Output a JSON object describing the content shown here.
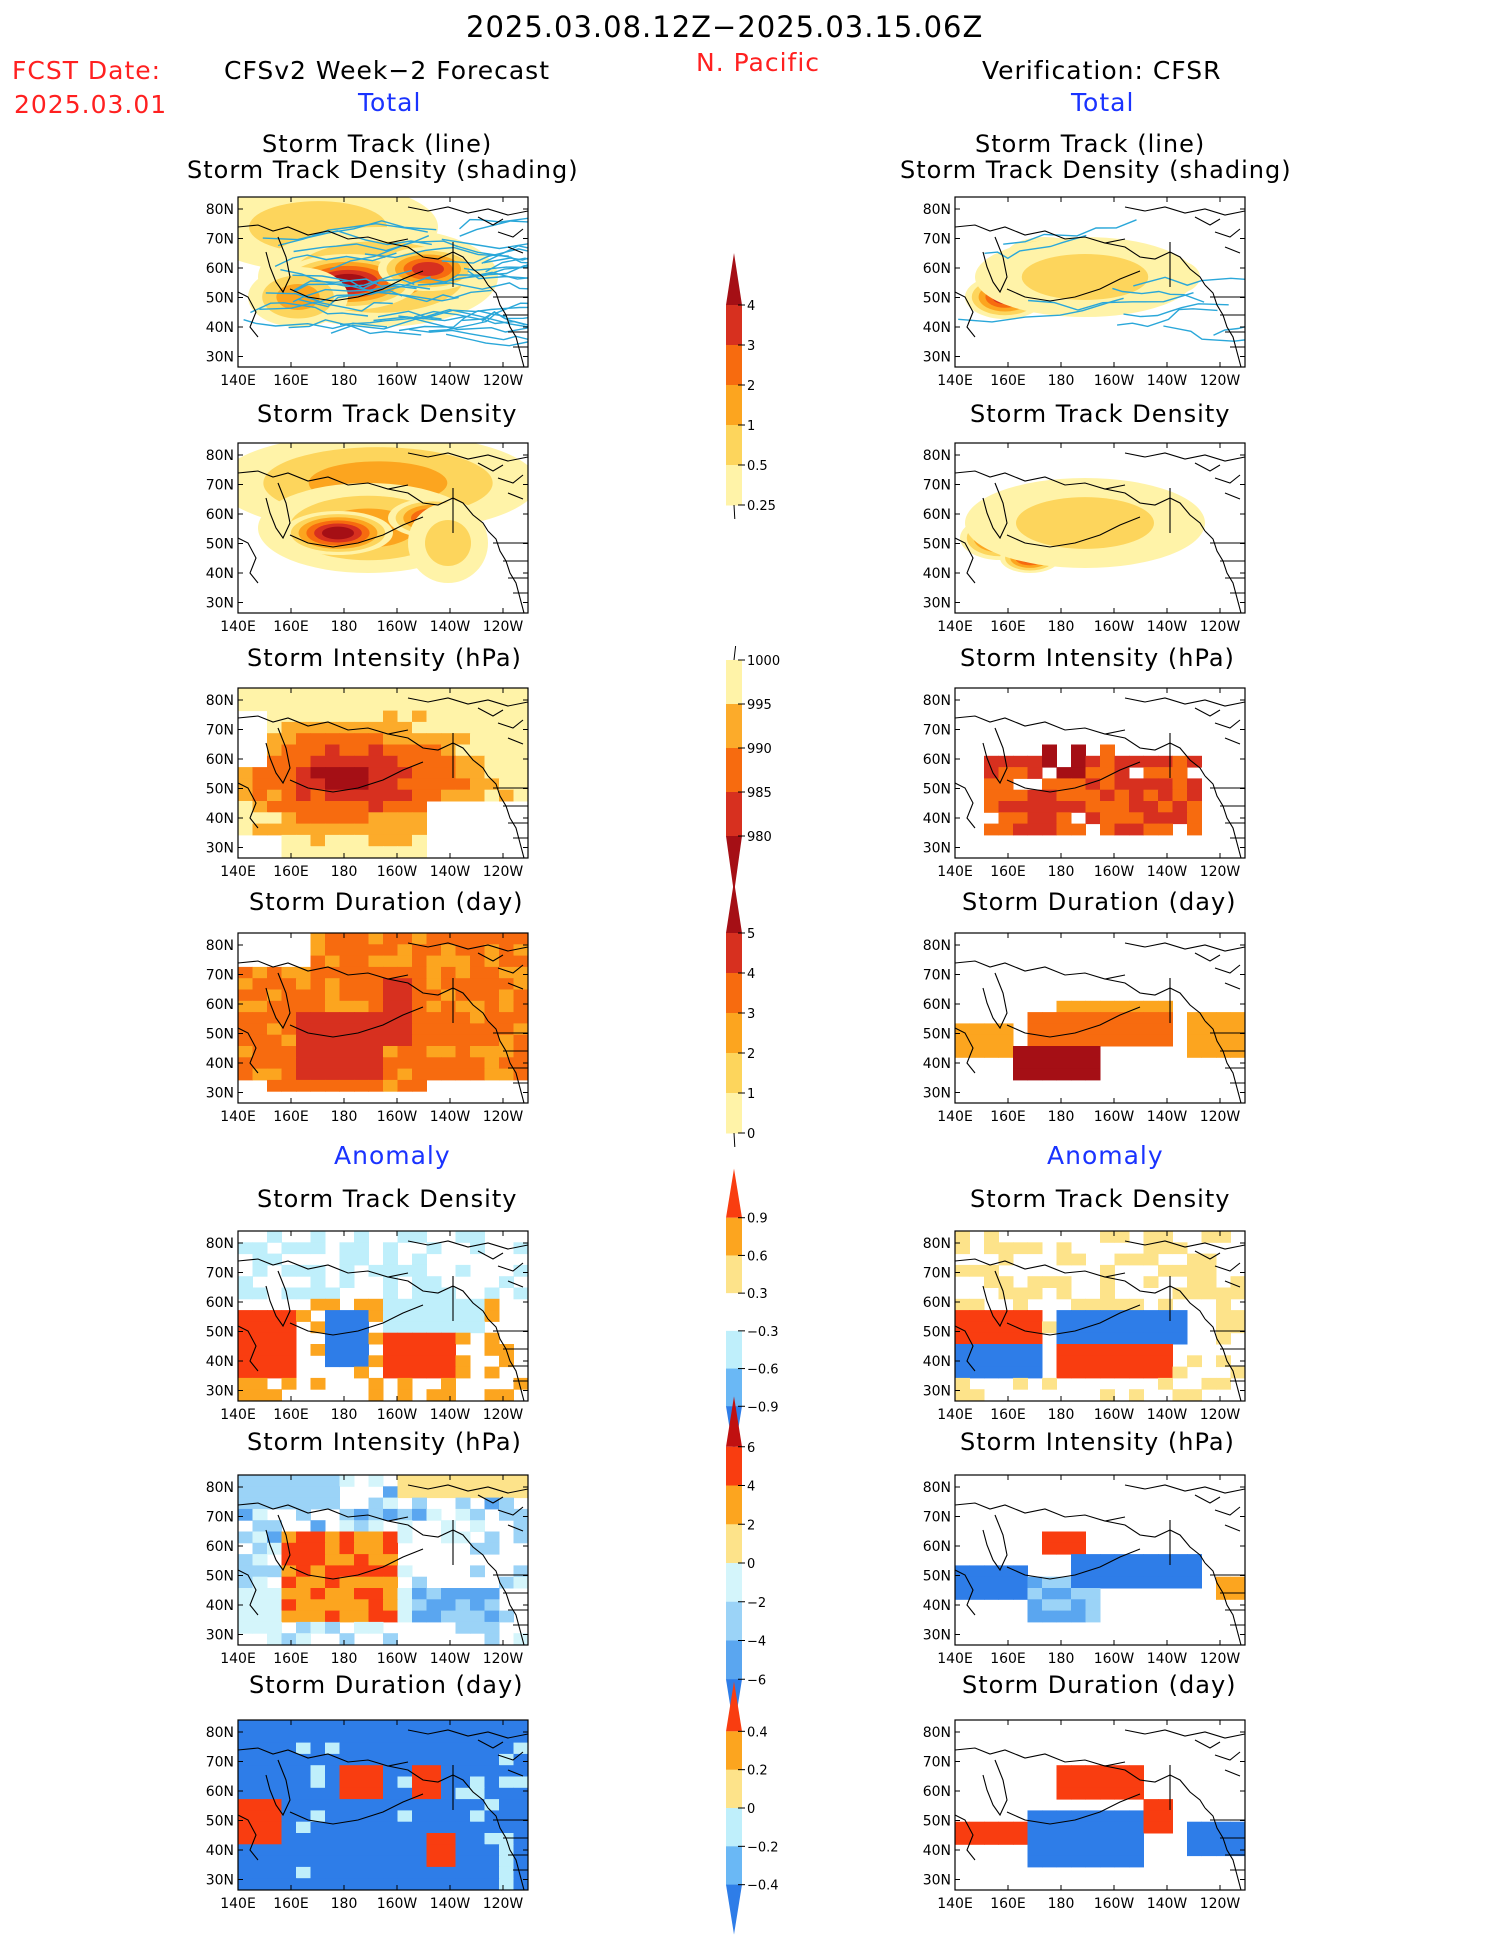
{
  "header": {
    "date_range": "2025.03.08.12Z−2025.03.15.06Z",
    "fcst_label": "FCST Date:",
    "fcst_date": "2025.03.01",
    "forecast_title": "CFSv2 Week−2 Forecast",
    "region": "N. Pacific",
    "verification_title": "Verification: CFSR"
  },
  "sections": {
    "total": "Total",
    "anomaly": "Anomaly"
  },
  "axes": {
    "lat_ticks": [
      "80N",
      "70N",
      "60N",
      "50N",
      "40N",
      "30N"
    ],
    "lon_ticks": [
      "140E",
      "160E",
      "180",
      "160W",
      "140W",
      "120W"
    ]
  },
  "panels": {
    "track": {
      "title1": "Storm Track (line)",
      "title2": "Storm Track Density (shading)"
    },
    "density": {
      "title": "Storm Track Density"
    },
    "intensity": {
      "title": "Storm Intensity (hPa)"
    },
    "duration": {
      "title": "Storm Duration (day)"
    },
    "anom_density": {
      "title": "Storm Track Density"
    },
    "anom_intensity": {
      "title": "Storm Intensity (hPa)"
    },
    "anom_duration": {
      "title": "Storm Duration (day)"
    }
  },
  "colorbars": {
    "density": {
      "labels": [
        "4",
        "3",
        "2",
        "1",
        "0.5",
        "0.25"
      ],
      "colors": [
        "#a50f15",
        "#d7301f",
        "#f76b0f",
        "#fca51f",
        "#fdd55c",
        "#fff3a8"
      ]
    },
    "intensity": {
      "labels": [
        "1000",
        "995",
        "990",
        "985",
        "980"
      ],
      "colors": [
        "#fff3a8",
        "#fcab2a",
        "#f76b0f",
        "#d7301f",
        "#a50f15"
      ]
    },
    "duration": {
      "labels": [
        "5",
        "4",
        "3",
        "2",
        "1",
        "0"
      ],
      "colors": [
        "#a50f15",
        "#d7301f",
        "#f76b0f",
        "#fca51f",
        "#fdd55c",
        "#fff3a8"
      ]
    },
    "anom_density": {
      "labels": [
        "0.9",
        "0.6",
        "0.3",
        "−0.3",
        "−0.6",
        "−0.9"
      ],
      "colors": [
        "#f93d10",
        "#fca51f",
        "#fde38a",
        "#ffffff",
        "#bfeffb",
        "#6ab8f5",
        "#2e7de8"
      ]
    },
    "anom_intensity": {
      "labels": [
        "6",
        "4",
        "2",
        "0",
        "−2",
        "−4",
        "−6"
      ],
      "colors": [
        "#c01010",
        "#f93d10",
        "#fca51f",
        "#fde38a",
        "#d4f5fb",
        "#9bd3f7",
        "#5aa6f0",
        "#2e7de8"
      ]
    },
    "anom_duration": {
      "labels": [
        "0.4",
        "0.2",
        "0",
        "−0.2",
        "−0.4"
      ],
      "colors": [
        "#f93d10",
        "#fca51f",
        "#fde38a",
        "#bfeffb",
        "#6ab8f5",
        "#2e7de8"
      ]
    }
  }
}
